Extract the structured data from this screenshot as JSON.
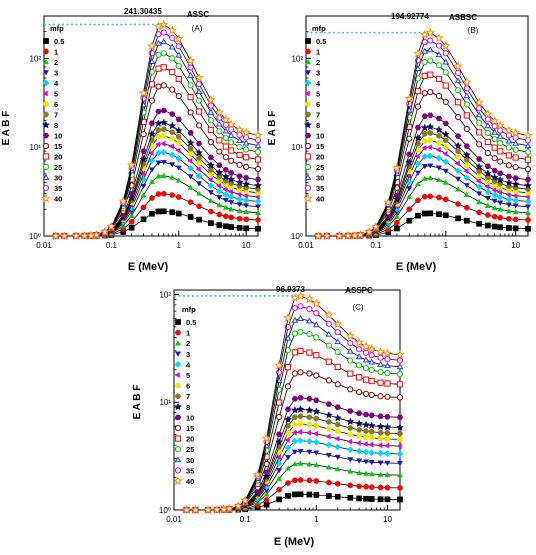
{
  "colors": {
    "peak_line": "#3ec6c6",
    "axis": "#000000"
  },
  "chart_data": [
    {
      "type": "line",
      "panel_tag": "(A)",
      "title": "ASSC",
      "xlabel": "E (MeV)",
      "ylabel": "E A B F",
      "xscale": "log",
      "yscale": "log",
      "xlim": [
        0.01,
        15
      ],
      "ylim": [
        1,
        300
      ],
      "x_ticks": [
        "0.01",
        "0.1",
        "1",
        "10"
      ],
      "y_ticks": [
        "10⁰",
        "10¹",
        "10²"
      ],
      "peak_label": "241.30435",
      "peak_value": 241.30435,
      "legend_title": "mfp",
      "legend_position": "left",
      "x": [
        0.015,
        0.02,
        0.03,
        0.04,
        0.05,
        0.06,
        0.08,
        0.1,
        0.15,
        0.2,
        0.3,
        0.4,
        0.5,
        0.6,
        0.8,
        1,
        1.5,
        2,
        3,
        4,
        5,
        6,
        8,
        10,
        15
      ],
      "series": [
        {
          "name": "0.5",
          "color": "#000000",
          "marker": "square",
          "peak": 1.9,
          "tail": 1.2
        },
        {
          "name": "1",
          "color": "#ff0000",
          "marker": "circle",
          "peak": 3.0,
          "tail": 1.5
        },
        {
          "name": "2",
          "color": "#00cc00",
          "marker": "triangle-up",
          "peak": 4.8,
          "tail": 1.8
        },
        {
          "name": "3",
          "color": "#1515cc",
          "marker": "triangle-down",
          "peak": 6.8,
          "tail": 2.1
        },
        {
          "name": "4",
          "color": "#00d8ff",
          "marker": "diamond",
          "peak": 8.8,
          "tail": 2.4
        },
        {
          "name": "5",
          "color": "#e000e0",
          "marker": "triangle-left",
          "peak": 11,
          "tail": 2.7
        },
        {
          "name": "6",
          "color": "#e8e800",
          "marker": "hexagon",
          "peak": 13.5,
          "tail": 3.0
        },
        {
          "name": "7",
          "color": "#8a7a1c",
          "marker": "circle",
          "peak": 16,
          "tail": 3.3
        },
        {
          "name": "8",
          "color": "#101060",
          "marker": "star",
          "peak": 19,
          "tail": 3.6
        },
        {
          "name": "10",
          "color": "#800080",
          "marker": "hexagon",
          "peak": 26,
          "tail": 4.2
        },
        {
          "name": "15",
          "color": "#800000",
          "marker": "circle-open",
          "peak": 50,
          "tail": 5.5
        },
        {
          "name": "20",
          "color": "#ff0000",
          "marker": "square-open",
          "peak": 80,
          "tail": 7.0
        },
        {
          "name": "25",
          "color": "#00cc00",
          "marker": "circle-open",
          "peak": 115,
          "tail": 8.5
        },
        {
          "name": "30",
          "color": "#2040ff",
          "marker": "triangle-open",
          "peak": 155,
          "tail": 10
        },
        {
          "name": "35",
          "color": "#e000e0",
          "marker": "circle-open",
          "peak": 197,
          "tail": 11.5
        },
        {
          "name": "40",
          "color": "#ff8c00",
          "marker": "star-open",
          "peak": 241.3,
          "tail": 13
        }
      ]
    },
    {
      "type": "line",
      "panel_tag": "(B)",
      "title": "ASBSC",
      "xlabel": "E (MeV)",
      "ylabel": "E A B F",
      "xscale": "log",
      "yscale": "log",
      "xlim": [
        0.01,
        15
      ],
      "ylim": [
        1,
        300
      ],
      "x_ticks": [
        "0.01",
        "0.1",
        "1",
        "10"
      ],
      "y_ticks": [
        "10⁰",
        "10¹",
        "10²"
      ],
      "peak_label": "194.92774",
      "peak_value": 194.92774,
      "legend_title": "mfp",
      "legend_position": "left",
      "x": [
        0.015,
        0.02,
        0.03,
        0.04,
        0.05,
        0.06,
        0.08,
        0.1,
        0.15,
        0.2,
        0.3,
        0.4,
        0.5,
        0.6,
        0.8,
        1,
        1.5,
        2,
        3,
        4,
        5,
        6,
        8,
        10,
        15
      ],
      "series": [
        {
          "name": "0.5",
          "color": "#000000",
          "marker": "square",
          "peak": 1.8,
          "tail": 1.2
        },
        {
          "name": "1",
          "color": "#ff0000",
          "marker": "circle",
          "peak": 2.8,
          "tail": 1.5
        },
        {
          "name": "2",
          "color": "#00cc00",
          "marker": "triangle-up",
          "peak": 4.5,
          "tail": 1.8
        },
        {
          "name": "3",
          "color": "#1515cc",
          "marker": "triangle-down",
          "peak": 6.2,
          "tail": 2.1
        },
        {
          "name": "4",
          "color": "#00d8ff",
          "marker": "diamond",
          "peak": 8.0,
          "tail": 2.4
        },
        {
          "name": "5",
          "color": "#e000e0",
          "marker": "triangle-left",
          "peak": 10,
          "tail": 2.7
        },
        {
          "name": "6",
          "color": "#e8e800",
          "marker": "hexagon",
          "peak": 12,
          "tail": 3.0
        },
        {
          "name": "7",
          "color": "#8a7a1c",
          "marker": "circle",
          "peak": 14.5,
          "tail": 3.3
        },
        {
          "name": "8",
          "color": "#101060",
          "marker": "star",
          "peak": 17,
          "tail": 3.6
        },
        {
          "name": "10",
          "color": "#800080",
          "marker": "hexagon",
          "peak": 23,
          "tail": 4.2
        },
        {
          "name": "15",
          "color": "#800000",
          "marker": "circle-open",
          "peak": 42,
          "tail": 5.5
        },
        {
          "name": "20",
          "color": "#ff0000",
          "marker": "square-open",
          "peak": 66,
          "tail": 7.0
        },
        {
          "name": "25",
          "color": "#00cc00",
          "marker": "circle-open",
          "peak": 95,
          "tail": 8.5
        },
        {
          "name": "30",
          "color": "#2040ff",
          "marker": "triangle-open",
          "peak": 126,
          "tail": 10
        },
        {
          "name": "35",
          "color": "#e000e0",
          "marker": "circle-open",
          "peak": 160,
          "tail": 11.5
        },
        {
          "name": "40",
          "color": "#ff8c00",
          "marker": "star-open",
          "peak": 194.9,
          "tail": 13
        }
      ]
    },
    {
      "type": "line",
      "panel_tag": "(C)",
      "title": "ASSPC",
      "xlabel": "E (MeV)",
      "ylabel": "E A B F",
      "xscale": "log",
      "yscale": "log",
      "xlim": [
        0.01,
        15
      ],
      "ylim": [
        1,
        110
      ],
      "x_ticks": [
        "0.01",
        "0.1",
        "1",
        "10"
      ],
      "y_ticks": [
        "10⁰",
        "10¹",
        "10²"
      ],
      "peak_label": "96.9373",
      "peak_value": 96.9373,
      "legend_title": "mfp",
      "legend_position": "left",
      "x": [
        0.015,
        0.02,
        0.03,
        0.04,
        0.05,
        0.06,
        0.08,
        0.1,
        0.15,
        0.2,
        0.3,
        0.4,
        0.5,
        0.6,
        0.8,
        1,
        1.5,
        2,
        3,
        4,
        5,
        6,
        8,
        10,
        15
      ],
      "series": [
        {
          "name": "0.5",
          "color": "#000000",
          "marker": "square",
          "peak": 1.4,
          "tail": 1.25
        },
        {
          "name": "1",
          "color": "#ff0000",
          "marker": "circle",
          "peak": 1.9,
          "tail": 1.6
        },
        {
          "name": "2",
          "color": "#00cc00",
          "marker": "triangle-up",
          "peak": 2.7,
          "tail": 2.1
        },
        {
          "name": "3",
          "color": "#1515cc",
          "marker": "triangle-down",
          "peak": 3.5,
          "tail": 2.7
        },
        {
          "name": "4",
          "color": "#00d8ff",
          "marker": "diamond",
          "peak": 4.4,
          "tail": 3.3
        },
        {
          "name": "5",
          "color": "#e000e0",
          "marker": "triangle-left",
          "peak": 5.3,
          "tail": 3.9
        },
        {
          "name": "6",
          "color": "#e8e800",
          "marker": "hexagon",
          "peak": 6.3,
          "tail": 4.5
        },
        {
          "name": "7",
          "color": "#8a7a1c",
          "marker": "circle",
          "peak": 7.4,
          "tail": 5.1
        },
        {
          "name": "8",
          "color": "#101060",
          "marker": "star",
          "peak": 8.6,
          "tail": 5.8
        },
        {
          "name": "10",
          "color": "#800080",
          "marker": "hexagon",
          "peak": 11,
          "tail": 7.2
        },
        {
          "name": "15",
          "color": "#800000",
          "marker": "circle-open",
          "peak": 19,
          "tail": 11
        },
        {
          "name": "20",
          "color": "#ff0000",
          "marker": "square-open",
          "peak": 30,
          "tail": 14.5
        },
        {
          "name": "25",
          "color": "#00cc00",
          "marker": "circle-open",
          "peak": 45,
          "tail": 18
        },
        {
          "name": "30",
          "color": "#2040ff",
          "marker": "triangle-open",
          "peak": 60,
          "tail": 21
        },
        {
          "name": "35",
          "color": "#e000e0",
          "marker": "circle-open",
          "peak": 78,
          "tail": 24
        },
        {
          "name": "40",
          "color": "#ff8c00",
          "marker": "star-open",
          "peak": 96.9,
          "tail": 27
        }
      ]
    }
  ]
}
